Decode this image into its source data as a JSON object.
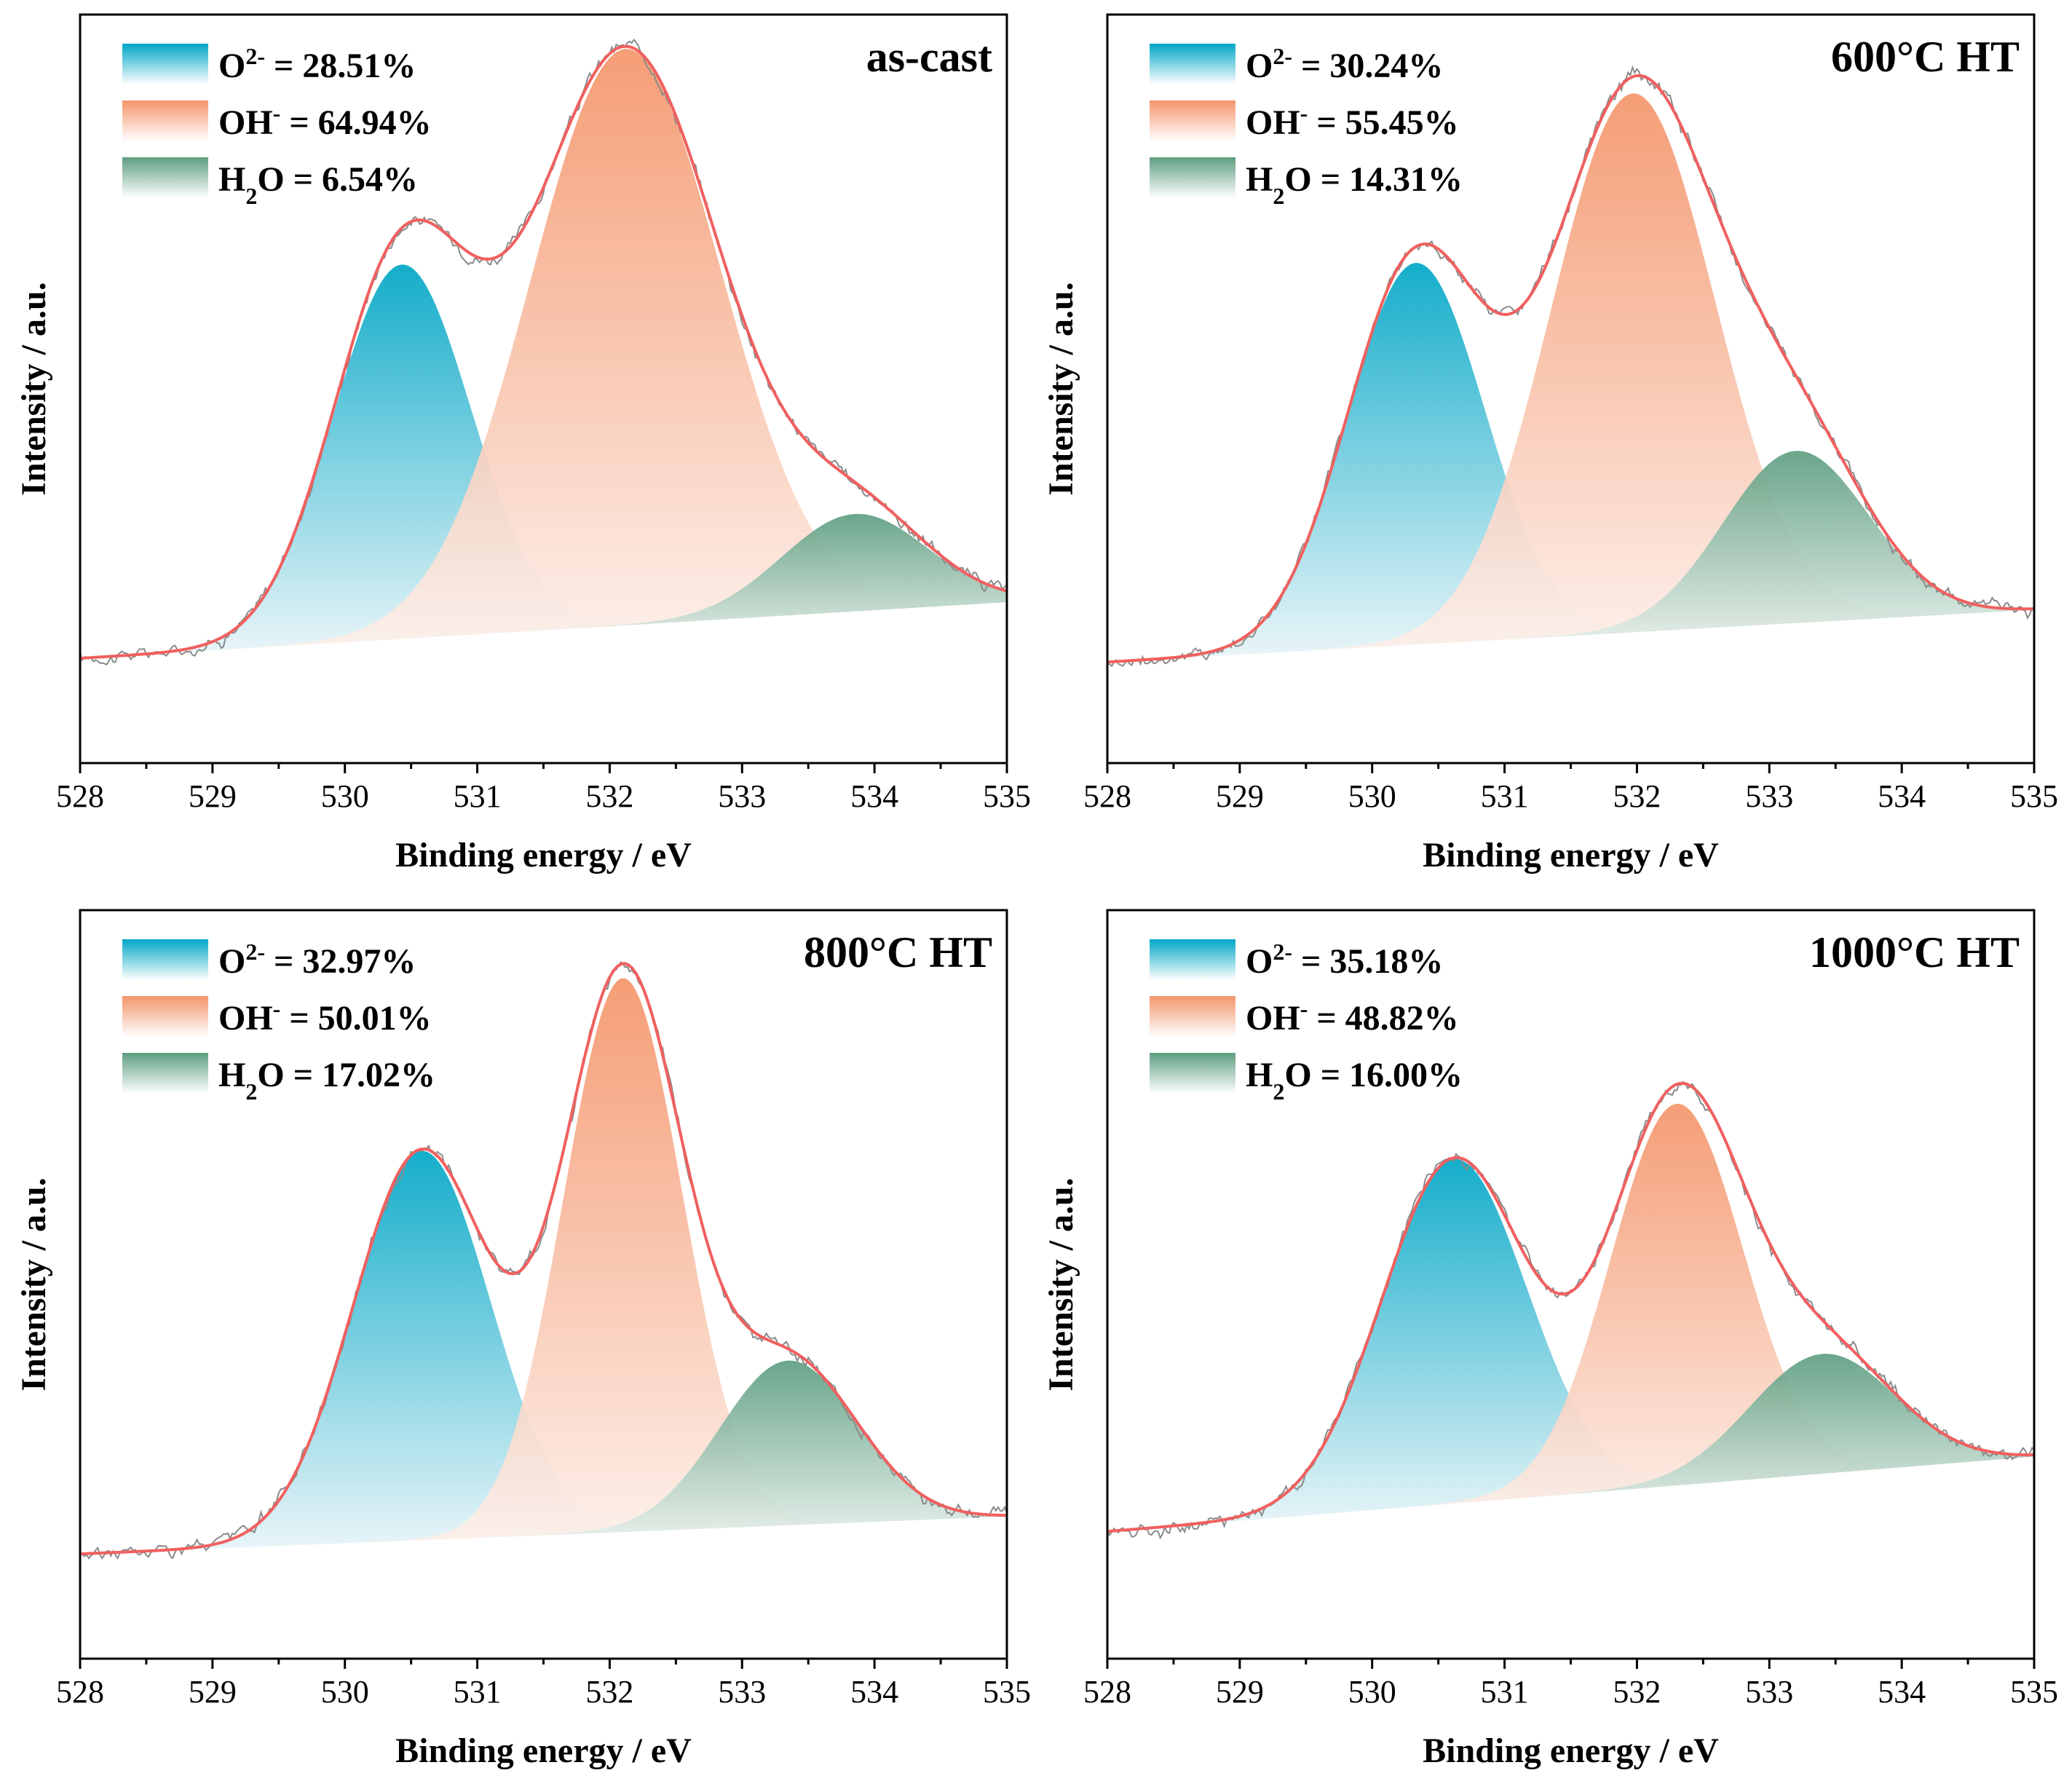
{
  "colors": {
    "o2": "#00a6c6",
    "oh": "#f4956a",
    "h2o": "#5e9e81",
    "envelope": "#f0605f",
    "raw": "#8a8a8a",
    "axis": "#000000"
  },
  "chart_data": [
    {
      "type": "area",
      "title": "as-cast",
      "xlabel": "Binding energy / eV",
      "ylabel": "Intensity / a.u.",
      "xlim": [
        528,
        535
      ],
      "xticks": [
        528,
        529,
        530,
        531,
        532,
        533,
        534,
        535
      ],
      "ylim": [
        0,
        1
      ],
      "yticks_visible": false,
      "grid": false,
      "legend_position": "top-left",
      "legend": [
        {
          "key": "o2",
          "prefix": "O",
          "sup": "2-",
          "sub": "",
          "suffix": "",
          "text": " = 28.51%"
        },
        {
          "key": "oh",
          "prefix": "OH",
          "sup": "-",
          "sub": "",
          "suffix": "",
          "text": " = 64.94%"
        },
        {
          "key": "h2o",
          "prefix": "H",
          "sup": "",
          "sub": "2",
          "suffix": "O",
          "text": " = 6.54%"
        }
      ],
      "baseline": {
        "start": 0.14,
        "end": 0.215
      },
      "peaks": [
        {
          "key": "o2",
          "center": 530.43,
          "height": 0.5,
          "sigma": 0.52
        },
        {
          "key": "oh",
          "center": 532.12,
          "height": 0.77,
          "sigma": 0.72
        },
        {
          "key": "h2o",
          "center": 533.85,
          "height": 0.13,
          "sigma": 0.55
        }
      ]
    },
    {
      "type": "area",
      "title": "600°C HT",
      "xlabel": "Binding energy / eV",
      "ylabel": "Intensity / a.u.",
      "xlim": [
        528,
        535
      ],
      "xticks": [
        528,
        529,
        530,
        531,
        532,
        533,
        534,
        535
      ],
      "ylim": [
        0,
        1
      ],
      "yticks_visible": false,
      "grid": false,
      "legend_position": "top-left",
      "legend": [
        {
          "key": "o2",
          "prefix": "O",
          "sup": "2-",
          "sub": "",
          "suffix": "",
          "text": " = 30.24%"
        },
        {
          "key": "oh",
          "prefix": "OH",
          "sup": "-",
          "sub": "",
          "suffix": "",
          "text": " = 55.45%"
        },
        {
          "key": "h2o",
          "prefix": "H",
          "sup": "",
          "sub": "2",
          "suffix": "O",
          "text": " = 14.31%"
        }
      ],
      "baseline": {
        "start": 0.135,
        "end": 0.205
      },
      "peaks": [
        {
          "key": "o2",
          "center": 530.33,
          "height": 0.51,
          "sigma": 0.52
        },
        {
          "key": "oh",
          "center": 531.97,
          "height": 0.72,
          "sigma": 0.62
        },
        {
          "key": "h2o",
          "center": 533.2,
          "height": 0.23,
          "sigma": 0.55
        }
      ]
    },
    {
      "type": "area",
      "title": "800°C HT",
      "xlabel": "Binding energy / eV",
      "ylabel": "Intensity / a.u.",
      "xlim": [
        528,
        535
      ],
      "xticks": [
        528,
        529,
        530,
        531,
        532,
        533,
        534,
        535
      ],
      "ylim": [
        0,
        1
      ],
      "yticks_visible": false,
      "grid": false,
      "legend_position": "top-left",
      "legend": [
        {
          "key": "o2",
          "prefix": "O",
          "sup": "2-",
          "sub": "",
          "suffix": "",
          "text": " = 32.97%"
        },
        {
          "key": "oh",
          "prefix": "OH",
          "sup": "-",
          "sub": "",
          "suffix": "",
          "text": " = 50.01%"
        },
        {
          "key": "h2o",
          "prefix": "H",
          "sup": "",
          "sub": "2",
          "suffix": "O",
          "text": " = 17.02%"
        }
      ],
      "baseline": {
        "start": 0.14,
        "end": 0.19
      },
      "peaks": [
        {
          "key": "o2",
          "center": 530.58,
          "height": 0.52,
          "sigma": 0.52
        },
        {
          "key": "oh",
          "center": 532.1,
          "height": 0.74,
          "sigma": 0.45
        },
        {
          "key": "h2o",
          "center": 533.35,
          "height": 0.22,
          "sigma": 0.52
        }
      ]
    },
    {
      "type": "area",
      "title": "1000°C HT",
      "xlabel": "Binding energy / eV",
      "ylabel": "Intensity / a.u.",
      "xlim": [
        528,
        535
      ],
      "xticks": [
        528,
        529,
        530,
        531,
        532,
        533,
        534,
        535
      ],
      "ylim": [
        0,
        1
      ],
      "yticks_visible": false,
      "grid": false,
      "legend_position": "top-left",
      "legend": [
        {
          "key": "o2",
          "prefix": "O",
          "sup": "2-",
          "sub": "",
          "suffix": "",
          "text": " = 35.18%"
        },
        {
          "key": "oh",
          "prefix": "OH",
          "sup": "-",
          "sub": "",
          "suffix": "",
          "text": " = 48.82%"
        },
        {
          "key": "h2o",
          "prefix": "H",
          "sup": "",
          "sub": "2",
          "suffix": "O",
          "text": " = 16.00%"
        }
      ],
      "baseline": {
        "start": 0.17,
        "end": 0.27
      },
      "peaks": [
        {
          "key": "o2",
          "center": 530.62,
          "height": 0.46,
          "sigma": 0.55
        },
        {
          "key": "oh",
          "center": 532.3,
          "height": 0.51,
          "sigma": 0.5
        },
        {
          "key": "h2o",
          "center": 533.4,
          "height": 0.16,
          "sigma": 0.55
        }
      ]
    }
  ]
}
